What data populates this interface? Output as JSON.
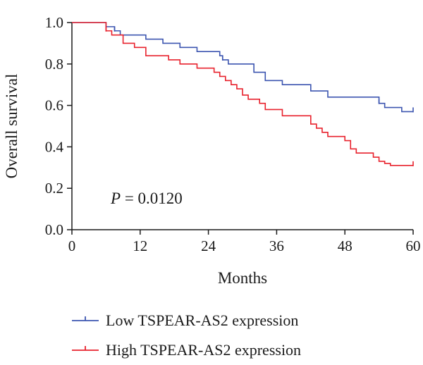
{
  "chart_data": {
    "type": "line",
    "xlabel": "Months",
    "ylabel": "Overall survival",
    "xlim": [
      0,
      60
    ],
    "ylim": [
      0,
      1.0
    ],
    "xticks": [
      0,
      12,
      24,
      36,
      48,
      60
    ],
    "yticks": [
      "0.0",
      "0.2",
      "0.4",
      "0.6",
      "0.8",
      "1.0"
    ],
    "grid": false,
    "legend_position": "bottom",
    "annotation": {
      "italic": "P",
      "text": " = 0.0120"
    },
    "series": [
      {
        "name": "Low TSPEAR-AS2 expression",
        "color": "#3c55b0",
        "x": [
          0,
          6,
          7.5,
          8.5,
          13,
          16,
          19,
          22,
          26,
          26.5,
          27.5,
          32,
          34,
          37,
          42,
          45,
          54,
          55,
          58,
          60
        ],
        "y": [
          1.0,
          0.98,
          0.96,
          0.94,
          0.92,
          0.9,
          0.88,
          0.86,
          0.84,
          0.82,
          0.8,
          0.76,
          0.72,
          0.7,
          0.67,
          0.64,
          0.61,
          0.59,
          0.57,
          0.57
        ],
        "censor_x": [
          7.5,
          26.5,
          54,
          60
        ],
        "censor_y": [
          0.96,
          0.82,
          0.61,
          0.57
        ]
      },
      {
        "name": "High TSPEAR-AS2 expression",
        "color": "#e8222d",
        "x": [
          0,
          6,
          7,
          9,
          11,
          13,
          17,
          19,
          22,
          25,
          26,
          27,
          28,
          29,
          30,
          31,
          33,
          34,
          37,
          42,
          43,
          44,
          45,
          48,
          49,
          50,
          53,
          54,
          55,
          56,
          60
        ],
        "y": [
          1.0,
          0.96,
          0.94,
          0.9,
          0.88,
          0.84,
          0.82,
          0.8,
          0.78,
          0.76,
          0.74,
          0.72,
          0.7,
          0.68,
          0.65,
          0.63,
          0.61,
          0.58,
          0.55,
          0.51,
          0.49,
          0.47,
          0.45,
          0.43,
          0.39,
          0.37,
          0.35,
          0.33,
          0.32,
          0.31,
          0.31
        ],
        "censor_x": [
          6,
          60
        ],
        "censor_y": [
          0.96,
          0.31
        ]
      }
    ]
  }
}
